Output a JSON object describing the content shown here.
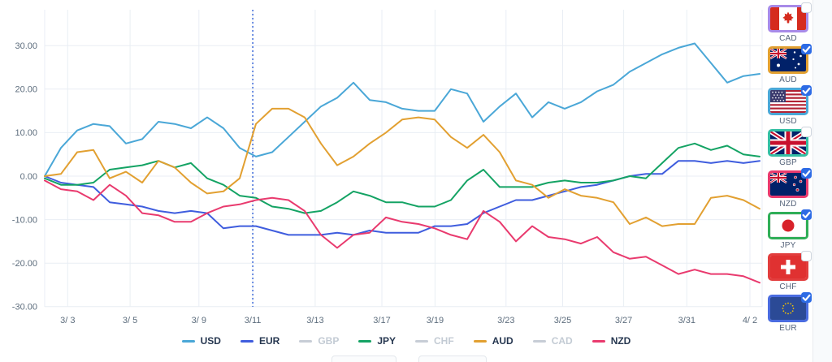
{
  "chart_data": {
    "type": "line",
    "title": "",
    "xlabel": "",
    "ylabel": "",
    "ylim": [
      -30,
      38
    ],
    "grid": true,
    "legend_position": "bottom-center",
    "y_ticks": [
      30,
      20,
      10,
      0,
      -10,
      -20,
      -30
    ],
    "y_tick_labels": [
      "30.00",
      "20.00",
      "10.00",
      "0.00",
      "-10.00",
      "-20.00",
      "-30.00"
    ],
    "x_ticks": [
      {
        "label": "3/ 3",
        "f": 0.032
      },
      {
        "label": "3/ 5",
        "f": 0.119
      },
      {
        "label": "3/ 9",
        "f": 0.215
      },
      {
        "label": "3/11",
        "f": 0.29
      },
      {
        "label": "3/13",
        "f": 0.377
      },
      {
        "label": "3/17",
        "f": 0.47
      },
      {
        "label": "3/19",
        "f": 0.544
      },
      {
        "label": "3/23",
        "f": 0.643
      },
      {
        "label": "3/25",
        "f": 0.722
      },
      {
        "label": "3/27",
        "f": 0.807
      },
      {
        "label": "3/31",
        "f": 0.895
      },
      {
        "label": "4/ 2",
        "f": 0.983
      }
    ],
    "marker": {
      "type": "vline",
      "at_fraction": 0.29,
      "label": "3/11",
      "style": "dotted"
    },
    "colors": {
      "grid": "#e9eef4",
      "axis_text": "#5d6d7d",
      "marker": "#3b68d8",
      "disabled": "#c7cdd6"
    },
    "series": [
      {
        "name": "USD",
        "color": "#4aa7d7",
        "visible": true,
        "values": [
          0,
          6.5,
          10.5,
          12,
          11.5,
          7.5,
          8.5,
          12.5,
          12,
          11,
          13.5,
          11,
          6.5,
          4.5,
          5.5,
          9,
          12.5,
          16,
          18,
          21.5,
          17.5,
          17,
          15.5,
          15,
          15,
          20,
          19,
          12.5,
          16,
          19,
          13.5,
          17,
          15.5,
          17,
          19.5,
          21,
          24,
          26,
          28,
          29.5,
          30.5,
          26,
          21.5,
          23,
          23.5
        ]
      },
      {
        "name": "EUR",
        "color": "#3f5dde",
        "visible": true,
        "values": [
          0,
          -1.5,
          -2,
          -2.5,
          -6,
          -6.5,
          -7,
          -8,
          -8.5,
          -8,
          -8.5,
          -12,
          -11.5,
          -11.5,
          -12.5,
          -13.5,
          -13.5,
          -13.5,
          -13,
          -13.5,
          -12.5,
          -13,
          -13,
          -13,
          -11.5,
          -11.5,
          -11,
          -8.5,
          -7,
          -5.5,
          -5.5,
          -4.5,
          -3.5,
          -2.5,
          -2,
          -1,
          0,
          0.5,
          0.5,
          3.5,
          3.5,
          3,
          3.5,
          3,
          3.5
        ]
      },
      {
        "name": "GBP",
        "color": "#c7cdd6",
        "visible": false,
        "values": []
      },
      {
        "name": "JPY",
        "color": "#14a364",
        "visible": true,
        "values": [
          -0.5,
          -2,
          -2,
          -1.5,
          1.5,
          2,
          2.5,
          3.5,
          2,
          3,
          -0.5,
          -2,
          -4.5,
          -5,
          -7,
          -7.5,
          -8.5,
          -8,
          -6,
          -3.5,
          -4.5,
          -6,
          -6,
          -7,
          -7,
          -5.5,
          -1,
          1.5,
          -2.5,
          -2.5,
          -2.5,
          -1.5,
          -1,
          -1.5,
          -1.5,
          -1,
          0,
          -0.5,
          3,
          6.5,
          7.5,
          6,
          7,
          5,
          4.5
        ]
      },
      {
        "name": "CHF",
        "color": "#c7cdd6",
        "visible": false,
        "values": []
      },
      {
        "name": "AUD",
        "color": "#e2a031",
        "visible": true,
        "values": [
          0,
          0.5,
          5.5,
          6,
          -0.5,
          1,
          -1.5,
          3.5,
          2,
          -1.5,
          -4,
          -3.5,
          -0.5,
          12,
          15.5,
          15.5,
          13.5,
          7.5,
          2.5,
          4.5,
          7.5,
          10,
          13,
          13.5,
          13,
          9,
          6.5,
          9.5,
          5.5,
          -1,
          -2,
          -5,
          -3,
          -4.5,
          -5,
          -6,
          -11,
          -9.5,
          -11.5,
          -11,
          -11,
          -5,
          -4.5,
          -5.5,
          -7.5
        ]
      },
      {
        "name": "CAD",
        "color": "#c7cdd6",
        "visible": false,
        "values": []
      },
      {
        "name": "NZD",
        "color": "#e93a6e",
        "visible": true,
        "values": [
          -1,
          -3,
          -3.5,
          -5.5,
          -2,
          -4.5,
          -8.5,
          -9,
          -10.5,
          -10.5,
          -8.5,
          -7,
          -6.5,
          -5.5,
          -5,
          -5.5,
          -8,
          -13.5,
          -16.5,
          -13.5,
          -13,
          -9.5,
          -10.5,
          -11,
          -12,
          -13.5,
          -14.5,
          -8,
          -10.5,
          -15,
          -11.5,
          -14,
          -14.5,
          -15.5,
          -14,
          -17.5,
          -19,
          -18.5,
          -20.5,
          -22.5,
          -21.5,
          -22.5,
          -22.5,
          -23,
          -24.5
        ]
      }
    ]
  },
  "legend": {
    "items": [
      {
        "label": "USD",
        "color": "#4aa7d7",
        "enabled": true
      },
      {
        "label": "EUR",
        "color": "#3f5dde",
        "enabled": true
      },
      {
        "label": "GBP",
        "color": "#c7cdd6",
        "enabled": false
      },
      {
        "label": "JPY",
        "color": "#14a364",
        "enabled": true
      },
      {
        "label": "CHF",
        "color": "#c7cdd6",
        "enabled": false
      },
      {
        "label": "AUD",
        "color": "#e2a031",
        "enabled": true
      },
      {
        "label": "CAD",
        "color": "#c7cdd6",
        "enabled": false
      },
      {
        "label": "NZD",
        "color": "#e93a6e",
        "enabled": true
      }
    ]
  },
  "currency_panel": {
    "items": [
      {
        "code": "CAD",
        "flag": "cad",
        "accent": "#a88ae8",
        "checked": false
      },
      {
        "code": "AUD",
        "flag": "aud",
        "accent": "#e2a031",
        "checked": true
      },
      {
        "code": "USD",
        "flag": "usd",
        "accent": "#4aa7d7",
        "checked": true
      },
      {
        "code": "GBP",
        "flag": "gbp",
        "accent": "#35bfa4",
        "checked": false
      },
      {
        "code": "NZD",
        "flag": "nzd",
        "accent": "#e93a6e",
        "checked": true
      },
      {
        "code": "JPY",
        "flag": "jpy",
        "accent": "#2fae57",
        "checked": true
      },
      {
        "code": "CHF",
        "flag": "chf",
        "accent": "#e23d3d",
        "checked": false
      },
      {
        "code": "EUR",
        "flag": "eur",
        "accent": "#4a6ce0",
        "checked": true
      }
    ],
    "checkbox_color": "#2d6be5"
  }
}
